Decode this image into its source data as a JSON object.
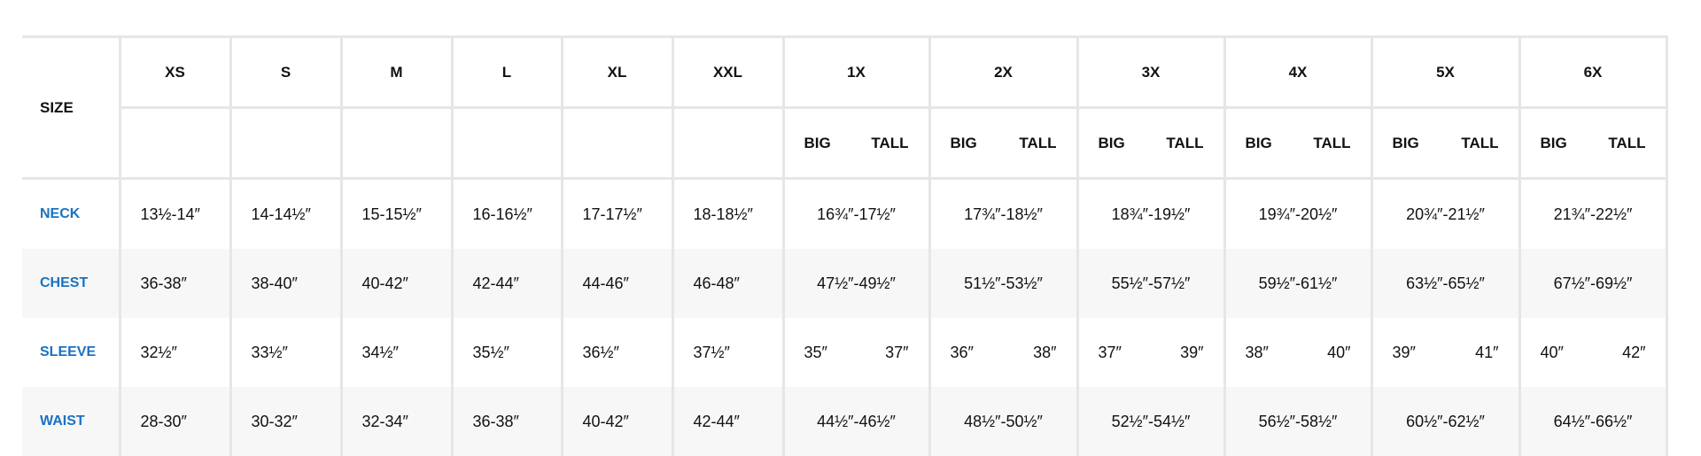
{
  "header": {
    "size_label": "SIZE",
    "sizes": [
      "XS",
      "S",
      "M",
      "L",
      "XL",
      "XXL",
      "1X",
      "2X",
      "3X",
      "4X",
      "5X",
      "6X"
    ],
    "big_label": "BIG",
    "tall_label": "TALL"
  },
  "rows": [
    {
      "label": "NECK",
      "values": [
        "13½-14″",
        "14-14½″",
        "15-15½″",
        "16-16½″",
        "17-17½″",
        "18-18½″",
        "16¾″-17½″",
        "17¾″-18½″",
        "18¾″-19½″",
        "19¾″-20½″",
        "20¾″-21½″",
        "21¾″-22½″"
      ]
    },
    {
      "label": "CHEST",
      "values": [
        "36-38″",
        "38-40″",
        "40-42″",
        "42-44″",
        "44-46″",
        "46-48″",
        "47½″-49½″",
        "51½″-53½″",
        "55½″-57½″",
        "59½″-61½″",
        "63½″-65½″",
        "67½″-69½″"
      ]
    },
    {
      "label": "SLEEVE",
      "values": [
        "32½″",
        "33½″",
        "34½″",
        "35½″",
        "36½″",
        "37½″"
      ],
      "big_tall": [
        [
          "35″",
          "37″"
        ],
        [
          "36″",
          "38″"
        ],
        [
          "37″",
          "39″"
        ],
        [
          "38″",
          "40″"
        ],
        [
          "39″",
          "41″"
        ],
        [
          "40″",
          "42″"
        ]
      ]
    },
    {
      "label": "WAIST",
      "values": [
        "28-30″",
        "30-32″",
        "32-34″",
        "36-38″",
        "40-42″",
        "42-44″",
        "44½″-46½″",
        "48½″-50½″",
        "52½″-54½″",
        "56½″-58½″",
        "60½″-62½″",
        "64½″-66½″"
      ]
    }
  ],
  "colors": {
    "label": "#1a72c0",
    "alt_row": "#f7f7f7",
    "border": "#e6e6e6"
  }
}
